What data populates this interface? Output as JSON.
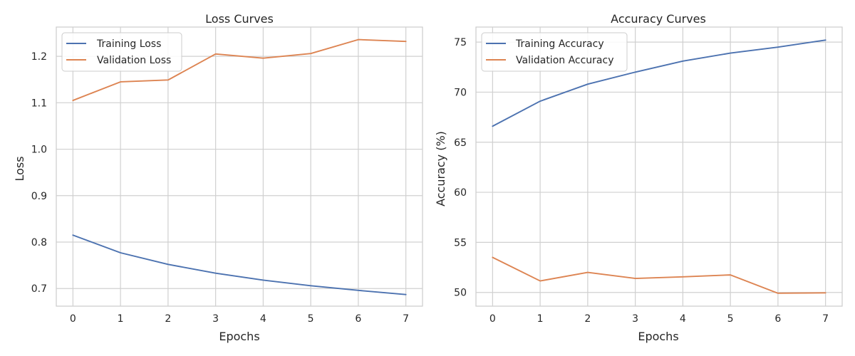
{
  "chart_data": [
    {
      "type": "line",
      "title": "Loss Curves",
      "xlabel": "Epochs",
      "ylabel": "Loss",
      "x": [
        0,
        1,
        2,
        3,
        4,
        5,
        6,
        7
      ],
      "xticks": [
        "0",
        "1",
        "2",
        "3",
        "4",
        "5",
        "6",
        "7"
      ],
      "xlim": [
        -0.35,
        7.35
      ],
      "ylim": [
        0.662,
        1.263
      ],
      "yticks": [
        0.7,
        0.8,
        0.9,
        1.0,
        1.1,
        1.2
      ],
      "ytick_labels": [
        "0.7",
        "0.8",
        "0.9",
        "1.0",
        "1.1",
        "1.2"
      ],
      "grid": true,
      "legend_position": "top-left",
      "series": [
        {
          "name": "Training Loss",
          "color": "#4c72b0",
          "values": [
            0.815,
            0.777,
            0.752,
            0.733,
            0.718,
            0.706,
            0.696,
            0.687
          ]
        },
        {
          "name": "Validation Loss",
          "color": "#dd8452",
          "values": [
            1.105,
            1.145,
            1.149,
            1.205,
            1.196,
            1.206,
            1.236,
            1.232
          ]
        }
      ]
    },
    {
      "type": "line",
      "title": "Accuracy Curves",
      "xlabel": "Epochs",
      "ylabel": "Accuracy (%)",
      "x": [
        0,
        1,
        2,
        3,
        4,
        5,
        6,
        7
      ],
      "xticks": [
        "0",
        "1",
        "2",
        "3",
        "4",
        "5",
        "6",
        "7"
      ],
      "xlim": [
        -0.35,
        7.35
      ],
      "ylim": [
        48.63,
        76.5
      ],
      "yticks": [
        50,
        55,
        60,
        65,
        70,
        75
      ],
      "ytick_labels": [
        "50",
        "55",
        "60",
        "65",
        "70",
        "75"
      ],
      "grid": true,
      "legend_position": "top-left",
      "series": [
        {
          "name": "Training Accuracy",
          "color": "#4c72b0",
          "values": [
            66.6,
            69.1,
            70.8,
            72.0,
            73.1,
            73.9,
            74.5,
            75.2
          ]
        },
        {
          "name": "Validation Accuracy",
          "color": "#dd8452",
          "values": [
            53.5,
            51.15,
            52.0,
            51.4,
            51.56,
            51.75,
            49.92,
            49.96
          ]
        }
      ]
    }
  ]
}
